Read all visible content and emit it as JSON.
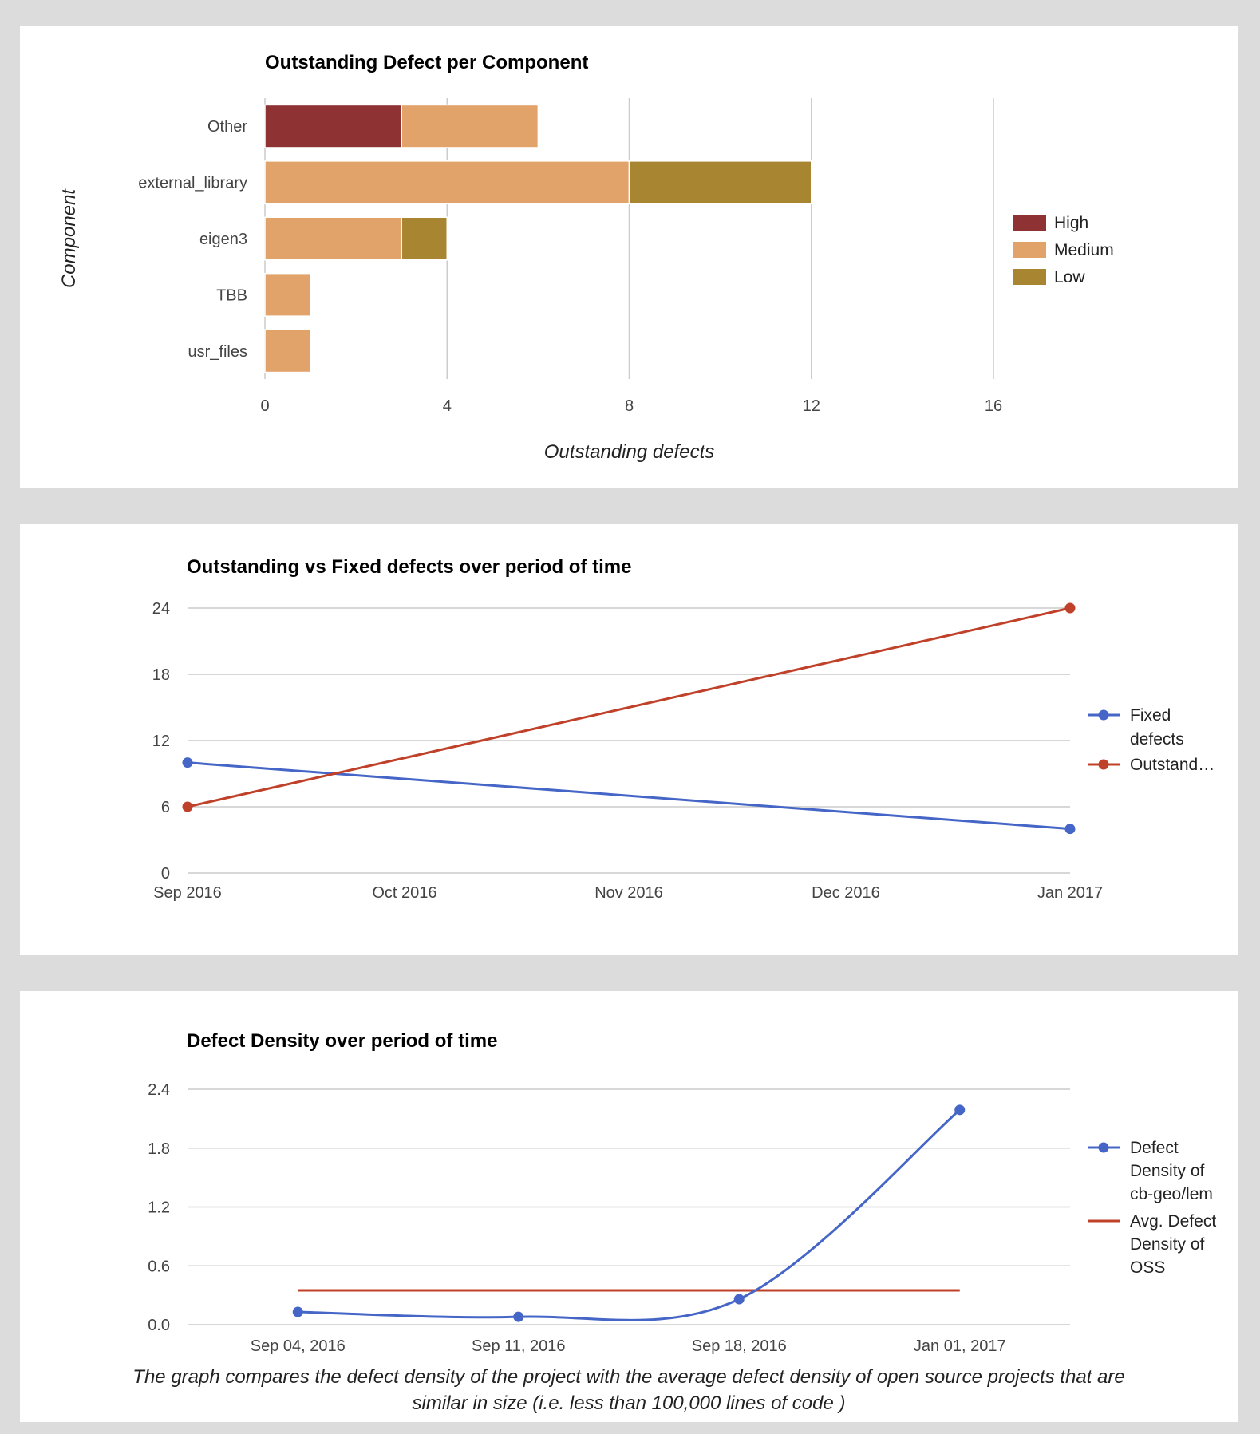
{
  "chart_data": [
    {
      "type": "bar",
      "orientation": "horizontal",
      "stacked": true,
      "title": "Outstanding Defect per Component",
      "xlabel": "Outstanding defects",
      "ylabel": "Component",
      "categories": [
        "Other",
        "external_library",
        "eigen3",
        "TBB",
        "usr_files"
      ],
      "series": [
        {
          "name": "High",
          "color": "#8e3233",
          "values": [
            3,
            0,
            0,
            0,
            0
          ]
        },
        {
          "name": "Medium",
          "color": "#e1a36a",
          "values": [
            3,
            8,
            3,
            1,
            1
          ]
        },
        {
          "name": "Low",
          "color": "#a88531",
          "values": [
            0,
            4,
            1,
            0,
            0
          ]
        }
      ],
      "xlim": [
        0,
        16
      ],
      "xticks": [
        "0",
        "4",
        "8",
        "12",
        "16"
      ],
      "legend": "right"
    },
    {
      "type": "line",
      "title": "Outstanding vs Fixed defects over period of time",
      "x": [
        "2016-09",
        "2017-01"
      ],
      "xticks": [
        "Sep 2016",
        "Oct 2016",
        "Nov 2016",
        "Dec 2016",
        "Jan 2017"
      ],
      "ylim": [
        0,
        24
      ],
      "yticks": [
        "0",
        "6",
        "12",
        "18",
        "24"
      ],
      "series": [
        {
          "name": "Fixed defects",
          "color": "#4566c6",
          "values": [
            10,
            4
          ]
        },
        {
          "name": "Outstanding defects",
          "legend_label": "Outstand…",
          "color": "#c0412a",
          "values": [
            6,
            24
          ]
        }
      ],
      "legend": "right"
    },
    {
      "type": "line",
      "title": "Defect Density over period of time",
      "categories": [
        "Sep 04, 2016",
        "Sep 11, 2016",
        "Sep 18, 2016",
        "Jan 01, 2017"
      ],
      "ylim": [
        0,
        2.4
      ],
      "yticks": [
        "0.0",
        "0.6",
        "1.2",
        "1.8",
        "2.4"
      ],
      "series": [
        {
          "name": "Defect Density of cb-geo/lem",
          "legend_lines": [
            "Defect",
            "Density of",
            "cb-geo/lem"
          ],
          "color": "#4566c6",
          "values": [
            0.13,
            0.08,
            0.26,
            2.19
          ],
          "markers": true
        },
        {
          "name": "Avg. Defect Density of OSS",
          "legend_lines": [
            "Avg. Defect",
            "Density of",
            "OSS"
          ],
          "color": "#c0412a",
          "values": [
            0.35,
            0.35,
            0.35,
            0.35
          ],
          "markers": false
        }
      ],
      "legend": "right",
      "caption": "The graph compares the defect density of the project with the average defect density of open source projects that are similar in size (i.e. less than 100,000 lines of code )"
    }
  ]
}
